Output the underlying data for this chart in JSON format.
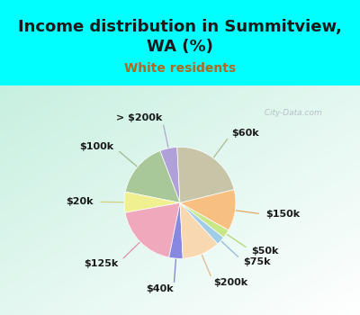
{
  "title": "Income distribution in Summitview,\nWA (%)",
  "subtitle": "White residents",
  "bg_cyan": "#00FFFF",
  "labels": [
    "> $200k",
    "$100k",
    "$20k",
    "$125k",
    "$40k",
    "$200k",
    "$75k",
    "$50k",
    "$150k",
    "$60k"
  ],
  "sizes": [
    5.0,
    16.0,
    6.0,
    19.0,
    4.0,
    11.0,
    2.5,
    2.5,
    12.0,
    22.0
  ],
  "colors": [
    "#b0a0d8",
    "#a8c89a",
    "#f0f090",
    "#f0a8bc",
    "#8888e0",
    "#f8d8b0",
    "#a0cce8",
    "#c8e888",
    "#f8c080",
    "#c8c4a8"
  ],
  "startangle": 93,
  "label_fontsize": 8,
  "title_fontsize": 13,
  "subtitle_fontsize": 10,
  "subtitle_color": "#b06820",
  "watermark": "  City-Data.com",
  "watermark_color": "#b0b8c0"
}
